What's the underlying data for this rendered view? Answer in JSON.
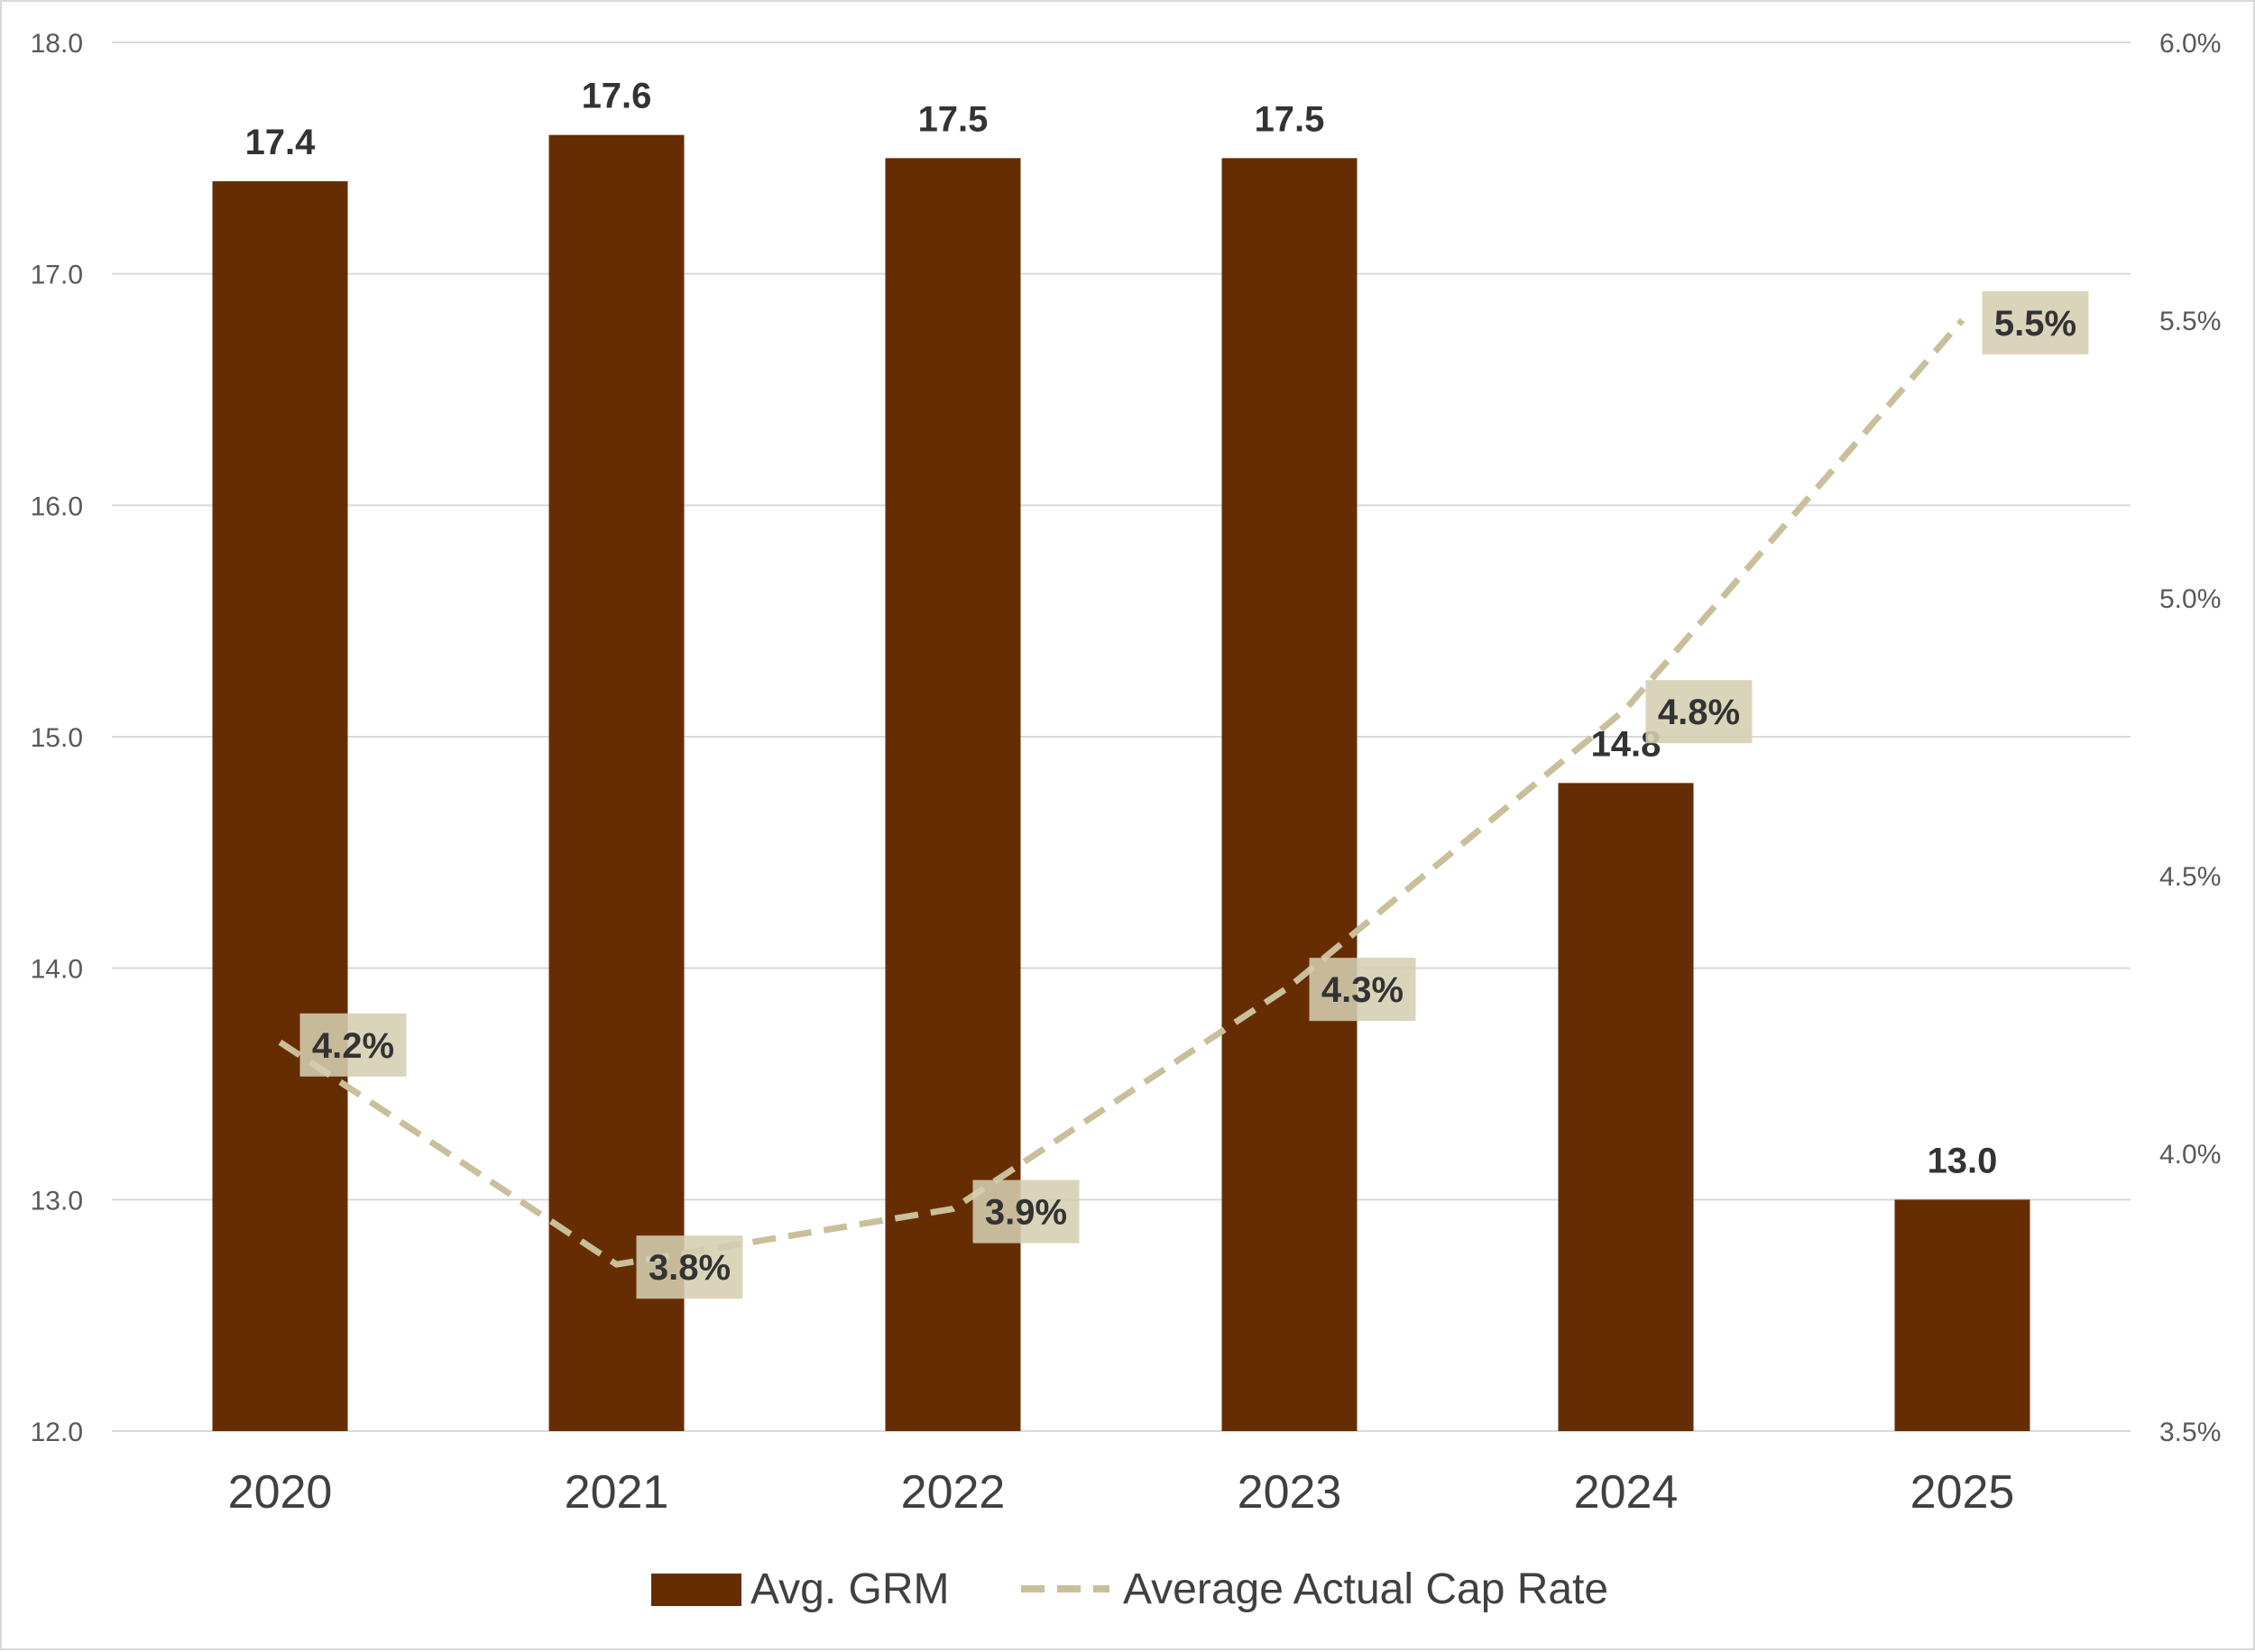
{
  "chart_data": {
    "type": "bar",
    "categories": [
      "2020",
      "2021",
      "2022",
      "2023",
      "2024",
      "2025"
    ],
    "series": [
      {
        "name": "Avg. GRM",
        "type": "bar",
        "axis": "left",
        "values": [
          17.4,
          17.6,
          17.5,
          17.5,
          14.8,
          13.0
        ],
        "labels": [
          "17.4",
          "17.6",
          "17.5",
          "17.5",
          "14.8",
          "13.0"
        ]
      },
      {
        "name": "Average Actual Cap Rate",
        "type": "line",
        "style": "dashed",
        "axis": "right",
        "values": [
          4.2,
          3.8,
          3.9,
          4.3,
          4.8,
          5.5
        ],
        "labels": [
          "4.2%",
          "3.8%",
          "3.9%",
          "4.3%",
          "4.8%",
          "5.5%"
        ]
      }
    ],
    "y_left": {
      "range": [
        12.0,
        18.0
      ],
      "ticks": [
        "12.0",
        "13.0",
        "14.0",
        "15.0",
        "16.0",
        "17.0",
        "18.0"
      ]
    },
    "y_right": {
      "range": [
        3.5,
        6.0
      ],
      "ticks": [
        "3.5%",
        "4.0%",
        "4.5%",
        "5.0%",
        "5.5%",
        "6.0%"
      ]
    },
    "grid": true,
    "legend_position": "bottom",
    "colors": {
      "bar": "#662d03",
      "line": "#c9bf9a",
      "label_box": "#d5ceb1",
      "grid": "#d9d9d9"
    }
  }
}
